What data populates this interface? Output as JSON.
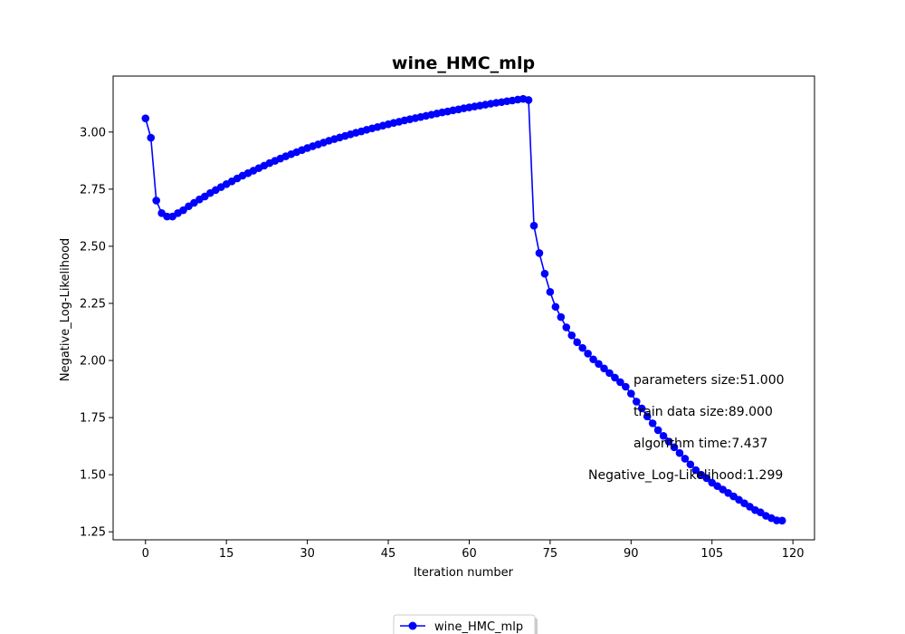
{
  "chart_data": {
    "type": "line",
    "title": "wine_HMC_mlp",
    "xlabel": "Iteration number",
    "ylabel": "Negative_Log-Likelihood",
    "xlim": [
      -6,
      124
    ],
    "ylim": [
      1.215,
      3.245
    ],
    "xticks": [
      0,
      15,
      30,
      45,
      60,
      75,
      90,
      105,
      120
    ],
    "xtick_labels": [
      "0",
      "15",
      "30",
      "45",
      "60",
      "75",
      "90",
      "105",
      "120"
    ],
    "yticks": [
      1.25,
      1.5,
      1.75,
      2.0,
      2.25,
      2.5,
      2.75,
      3.0
    ],
    "ytick_labels": [
      "1.25",
      "1.50",
      "1.75",
      "2.00",
      "2.25",
      "2.50",
      "2.75",
      "3.00"
    ],
    "grid": false,
    "legend_position": "bottom-center",
    "series": [
      {
        "name": "wine_HMC_mlp",
        "color": "#0000ff",
        "marker": "circle",
        "x": [
          0,
          1,
          2,
          3,
          4,
          5,
          6,
          7,
          8,
          9,
          10,
          11,
          12,
          13,
          14,
          15,
          16,
          17,
          18,
          19,
          20,
          21,
          22,
          23,
          24,
          25,
          26,
          27,
          28,
          29,
          30,
          31,
          32,
          33,
          34,
          35,
          36,
          37,
          38,
          39,
          40,
          41,
          42,
          43,
          44,
          45,
          46,
          47,
          48,
          49,
          50,
          51,
          52,
          53,
          54,
          55,
          56,
          57,
          58,
          59,
          60,
          61,
          62,
          63,
          64,
          65,
          66,
          67,
          68,
          69,
          70,
          71,
          72,
          73,
          74,
          75,
          76,
          77,
          78,
          79,
          80,
          81,
          82,
          83,
          84,
          85,
          86,
          87,
          88,
          89,
          90,
          91,
          92,
          93,
          94,
          95,
          96,
          97,
          98,
          99,
          100,
          101,
          102,
          103,
          104,
          105,
          106,
          107,
          108,
          109,
          110,
          111,
          112,
          113,
          114,
          115,
          116,
          117,
          118
        ],
        "y": [
          3.06,
          2.975,
          2.7,
          2.645,
          2.63,
          2.63,
          2.645,
          2.658,
          2.675,
          2.69,
          2.705,
          2.718,
          2.733,
          2.746,
          2.759,
          2.772,
          2.784,
          2.797,
          2.809,
          2.82,
          2.831,
          2.842,
          2.853,
          2.864,
          2.874,
          2.884,
          2.894,
          2.903,
          2.912,
          2.921,
          2.93,
          2.938,
          2.946,
          2.954,
          2.962,
          2.969,
          2.976,
          2.983,
          2.99,
          2.997,
          3.003,
          3.01,
          3.016,
          3.022,
          3.028,
          3.034,
          3.04,
          3.045,
          3.051,
          3.056,
          3.061,
          3.066,
          3.071,
          3.076,
          3.081,
          3.086,
          3.09,
          3.095,
          3.099,
          3.104,
          3.108,
          3.112,
          3.116,
          3.12,
          3.124,
          3.128,
          3.131,
          3.135,
          3.138,
          3.142,
          3.145,
          3.14,
          2.59,
          2.47,
          2.38,
          2.3,
          2.235,
          2.19,
          2.145,
          2.11,
          2.08,
          2.055,
          2.03,
          2.005,
          1.985,
          1.965,
          1.945,
          1.925,
          1.905,
          1.885,
          1.855,
          1.82,
          1.79,
          1.755,
          1.725,
          1.695,
          1.67,
          1.645,
          1.62,
          1.595,
          1.57,
          1.545,
          1.52,
          1.5,
          1.485,
          1.465,
          1.45,
          1.435,
          1.42,
          1.405,
          1.39,
          1.375,
          1.36,
          1.345,
          1.335,
          1.32,
          1.31,
          1.3,
          1.299
        ]
      }
    ],
    "annotations": [
      "parameters size:51.000",
      "train data size:89.000",
      "algorithm time:7.437",
      "Negative_Log-Likelihood:1.299"
    ]
  }
}
